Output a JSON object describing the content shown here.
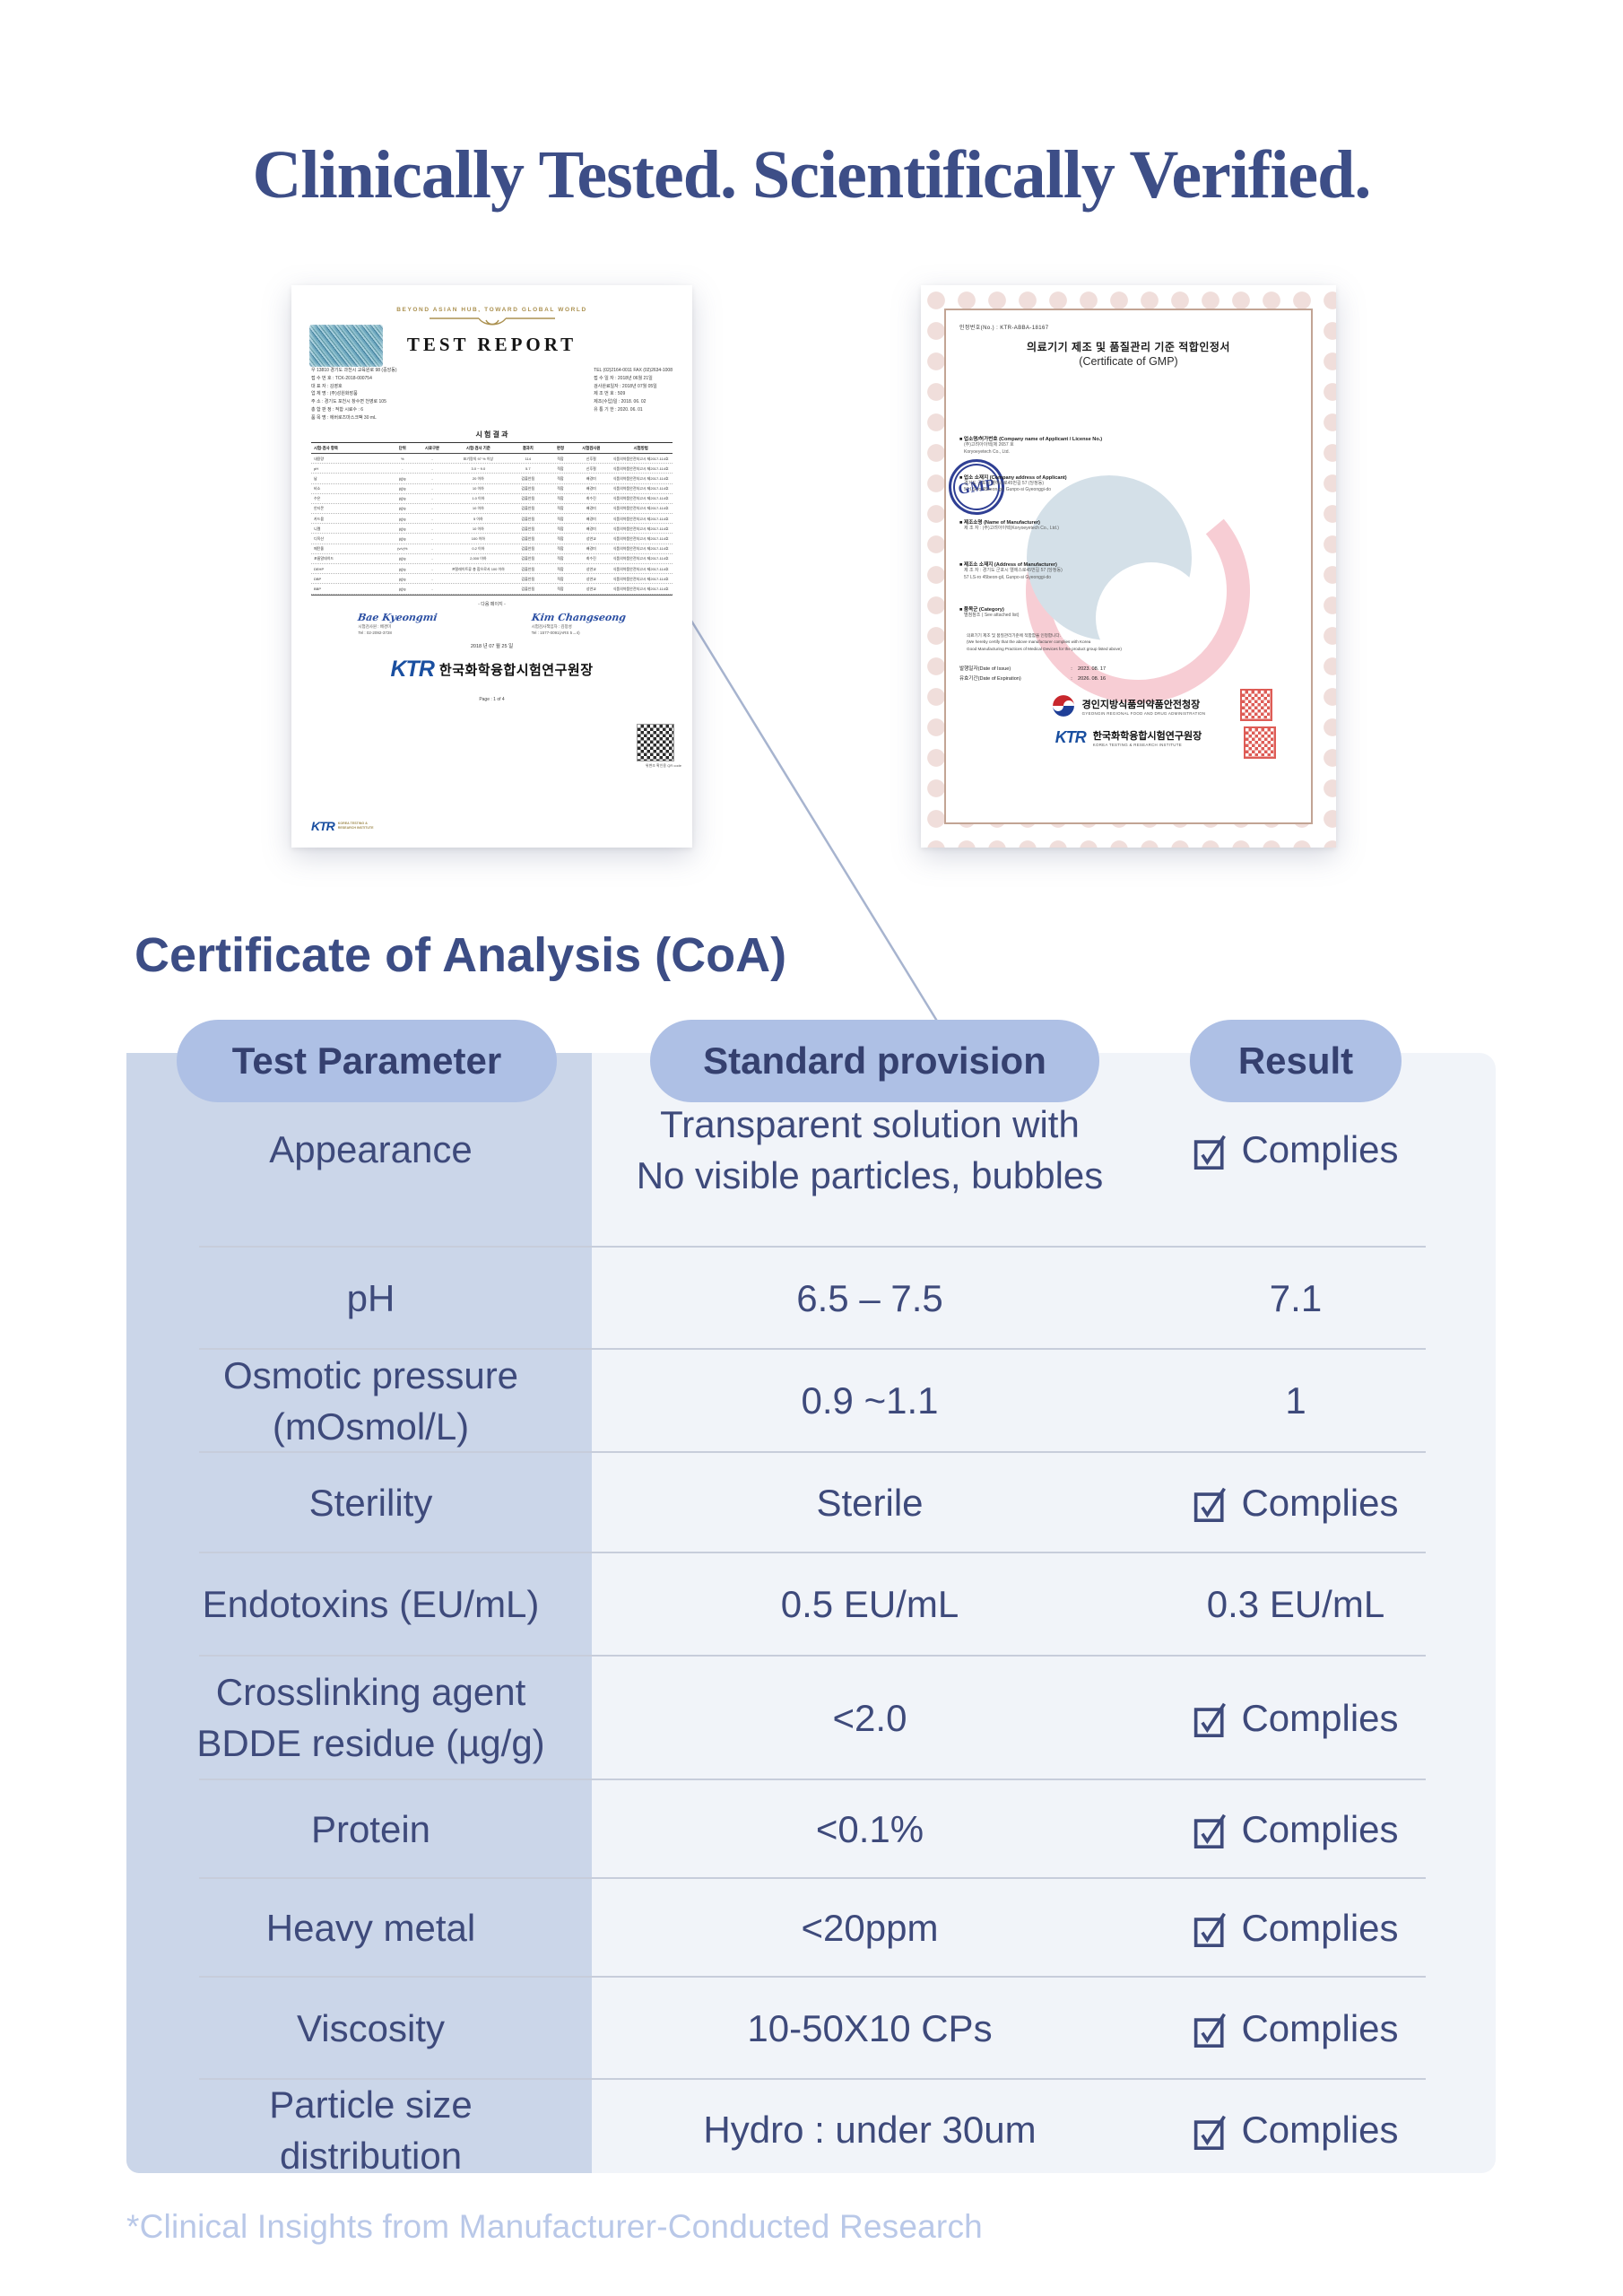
{
  "page": {
    "title": "Clinically Tested. Scientifically Verified.",
    "footnote": "*Clinical Insights from Manufacturer-Conducted Research"
  },
  "colors": {
    "headline_navy": "#3D4E87",
    "table_text_navy": "#3E4A7B",
    "pill_bg": "#AEC0E5",
    "first_column_bg": "#CBD6E9",
    "table_body_bg": "#F1F4F9",
    "divider": "#C7CDDB",
    "footnote_blue": "#B9C8E8",
    "ktr_blue": "#1A4FA0",
    "seal_red": "#D6342C",
    "gold": "#AB9150"
  },
  "coa": {
    "heading": "Certificate of Analysis (CoA)",
    "columns": [
      "Test Parameter",
      "Standard provision",
      "Result"
    ],
    "rows": [
      {
        "parameter": "Appearance",
        "standard": "Transparent solution with\nNo visible particles, bubbles",
        "result": "Complies",
        "check": true
      },
      {
        "parameter": "pH",
        "standard": "6.5 – 7.5",
        "result": "7.1",
        "check": false
      },
      {
        "parameter": "Osmotic pressure\n(mOsmol/L)",
        "standard": "0.9 ~1.1",
        "result": "1",
        "check": false
      },
      {
        "parameter": "Sterility",
        "standard": "Sterile",
        "result": "Complies",
        "check": true
      },
      {
        "parameter": "Endotoxins (EU/mL)",
        "standard": "0.5 EU/mL",
        "result": "0.3 EU/mL",
        "check": false
      },
      {
        "parameter": "Crosslinking agent\nBDDE residue (µg/g)",
        "standard": "<2.0",
        "result": "Complies",
        "check": true
      },
      {
        "parameter": "Protein",
        "standard": "<0.1%",
        "result": "Complies",
        "check": true
      },
      {
        "parameter": "Heavy metal",
        "standard": "<20ppm",
        "result": "Complies",
        "check": true
      },
      {
        "parameter": "Viscosity",
        "standard": "10-50X10 CPs",
        "result": "Complies",
        "check": true
      },
      {
        "parameter": "Particle size\ndistribution",
        "standard": "Hydro : under 30um",
        "result": "Complies",
        "check": true
      }
    ]
  },
  "test_report": {
    "banner": "BEYOND ASIAN HUB, TOWARD GLOBAL WORLD",
    "title": "TEST REPORT",
    "info_left": [
      "우 13810 경기도 과천시 교육원로 98 (중앙동)",
      "접 수 번 호 : TCK-2018-000754",
      "대  표  자 : 김영호",
      "업  체  명 : (주)성원화장품",
      "주        소 : 경기도 포천시 창수면 천영로 105",
      "총 합 판 정 : 적합        시료수 : 6",
      "품  목  명 : 에버로즈마스크팩 30 mL"
    ],
    "info_right": [
      "TEL (02)2164-0011    FAX (02)2634-1008",
      "접 수 일 자 : 2018년 06월 21일",
      "검사완료일자 : 2018년 07월 05일",
      "제 조 번 호 : 509",
      "제조(수입)일 : 2018. 06. 02",
      "유 통 기 한 : 2020. 06. 01"
    ],
    "results_title": "시 험 결 과",
    "table": {
      "headers": [
        "시험·검사 항목",
        "단위",
        "시료구분",
        "시험·검사 기준",
        "결과치",
        "판정",
        "시험검사원",
        "시험방법"
      ],
      "rows": [
        [
          "내용량",
          "%",
          "-",
          "표기량의 97 % 이상",
          "114",
          "적합",
          "신후철",
          "식품의약품안전처고시 제2017-114호"
        ],
        [
          "pH",
          "-",
          "-",
          "3.0 ~ 9.0",
          "5.7",
          "적합",
          "신후철",
          "식품의약품안전처고시 제2017-114호"
        ],
        [
          "납",
          "㎍/g",
          "-",
          "20 이하",
          "검출안됨",
          "적합",
          "배경미",
          "식품의약품안전처고시 제2017-114호"
        ],
        [
          "비소",
          "㎍/g",
          "-",
          "10 이하",
          "검출안됨",
          "적합",
          "배경미",
          "식품의약품안전처고시 제2017-114호"
        ],
        [
          "수은",
          "㎍/g",
          "-",
          "1.0 이하",
          "검출안됨",
          "적합",
          "최수진",
          "식품의약품안전처고시 제2017-114호"
        ],
        [
          "안티몬",
          "㎍/g",
          "-",
          "10 이하",
          "검출안됨",
          "적합",
          "배경미",
          "식품의약품안전처고시 제2017-114호"
        ],
        [
          "카드뮴",
          "㎍/g",
          "-",
          "5 이하",
          "검출안됨",
          "적합",
          "배경미",
          "식품의약품안전처고시 제2017-114호"
        ],
        [
          "니켈",
          "㎍/g",
          "-",
          "10 이하",
          "검출안됨",
          "적합",
          "배경미",
          "식품의약품안전처고시 제2017-114호"
        ],
        [
          "디옥산",
          "㎍/g",
          "-",
          "100 이하",
          "검출안됨",
          "적합",
          "성연교",
          "식품의약품안전처고시 제2017-114호"
        ],
        [
          "메탄올",
          "(v/v)%",
          "-",
          "0.2 이하",
          "검출안됨",
          "적합",
          "배경미",
          "식품의약품안전처고시 제2017-114호"
        ],
        [
          "포름알데히드",
          "㎍/g",
          "-",
          "2,000 이하",
          "검출안됨",
          "적합",
          "최수진",
          "식품의약품안전처고시 제2017-114호"
        ],
        [
          "DEHP",
          "㎍/g",
          "-",
          "프탈레이트류 총 합으로서 100 이하",
          "검출안됨",
          "적합",
          "성연교",
          "식품의약품안전처고시 제2017-114호"
        ],
        [
          "DBP",
          "㎍/g",
          "-",
          "",
          "검출안됨",
          "적합",
          "성연교",
          "식품의약품안전처고시 제2017-114호"
        ],
        [
          "BBP",
          "㎍/g",
          "-",
          "",
          "검출안됨",
          "적합",
          "성연교",
          "식품의약품안전처고시 제2017-114호"
        ]
      ]
    },
    "next_page": "- 다음 페이지 -",
    "signer1": {
      "name": "Bae Kyeongmi",
      "lines": [
        "시험검사원 : 배경미",
        "Tel : 02-2092-3728"
      ]
    },
    "signer2": {
      "name": "Kim Changseong",
      "lines": [
        "시험검사책임자 : 김창성",
        "Tel : 1577-0091(ARS 5→4)"
      ]
    },
    "date": "2018 년 07 월 25 일",
    "org_logo": "KTR",
    "org_name": "한국화학융합시험연구원장",
    "qr_caption": "위변조 확인용  QR code",
    "page_label": "Page :   1   of   4",
    "footer_logo": "KTR",
    "footer_org": [
      "KOREA TESTING &",
      "RESEARCH INSTITUTE"
    ]
  },
  "gmp": {
    "cert_no": "인정번호(No.) :   KTR-ABBA-18167",
    "title_ko": "의료기기 제조 및 품질관리 기준 적합인정서",
    "title_en": "(Certificate of GMP)",
    "seal_label": "GMP",
    "sections": [
      {
        "label": "■ 업소명/허가번호 (Company name of Applicant / License No.)",
        "lines": [
          "(주)고려아이텍(제 2657 호",
          "Koryoeyetech Co., Ltd."
        ]
      },
      {
        "label": "■ 업소 소재지 (Company address of Applicant)",
        "lines": [
          "경기도 군포시 엘에스로45번길 57 (당정동)",
          "57 LS-ro 45beon-gil, Gunpo-si Gyeonggi-do"
        ]
      },
      {
        "label": "■ 제조소명 (Name of Manufacturer)",
        "lines": [
          "제 조 자 : (주)고려아이텍(Koryoeyetech Co., Ltd.)"
        ]
      },
      {
        "label": "■ 제조소 소재지 (Address of Manufacturer)",
        "lines": [
          "제 조 자 : 경기도 군포시 엘에스로45번길 57 (당정동)",
          "57 LS-ro 45beon-gil, Gunpo-si Gyeonggi-do"
        ]
      },
      {
        "label": "■ 품목군 (Category)",
        "lines": [
          "별첨참조 ( See attached list)"
        ]
      }
    ],
    "statement": [
      "의료기기 제조 및 품질관리기준에 적합함을 인정합니다.",
      "(We hereby certify that the above manufacturer complies with Korea",
      "Good Manufacturing Practices of Medical Devices for the product group listed above)"
    ],
    "issue_label": "발행일자(Date of Issue)",
    "issue_colon": ":",
    "issue_value": "2023. 08. 17",
    "expiry_label": "유효기간(Date of Expiration)",
    "expiry_colon": ":",
    "expiry_value": "2026. 08. 16",
    "authority1_ko": "경인지방식품의약품안전청장",
    "authority1_en": "GYEONGIN REGIONAL FOOD AND DRUG ADMINISTRATION",
    "authority2_logo": "KTR",
    "authority2_ko": "한국화학융합시험연구원장",
    "authority2_en": "KOREA TESTING & RESEARCH INSTITUTE"
  }
}
